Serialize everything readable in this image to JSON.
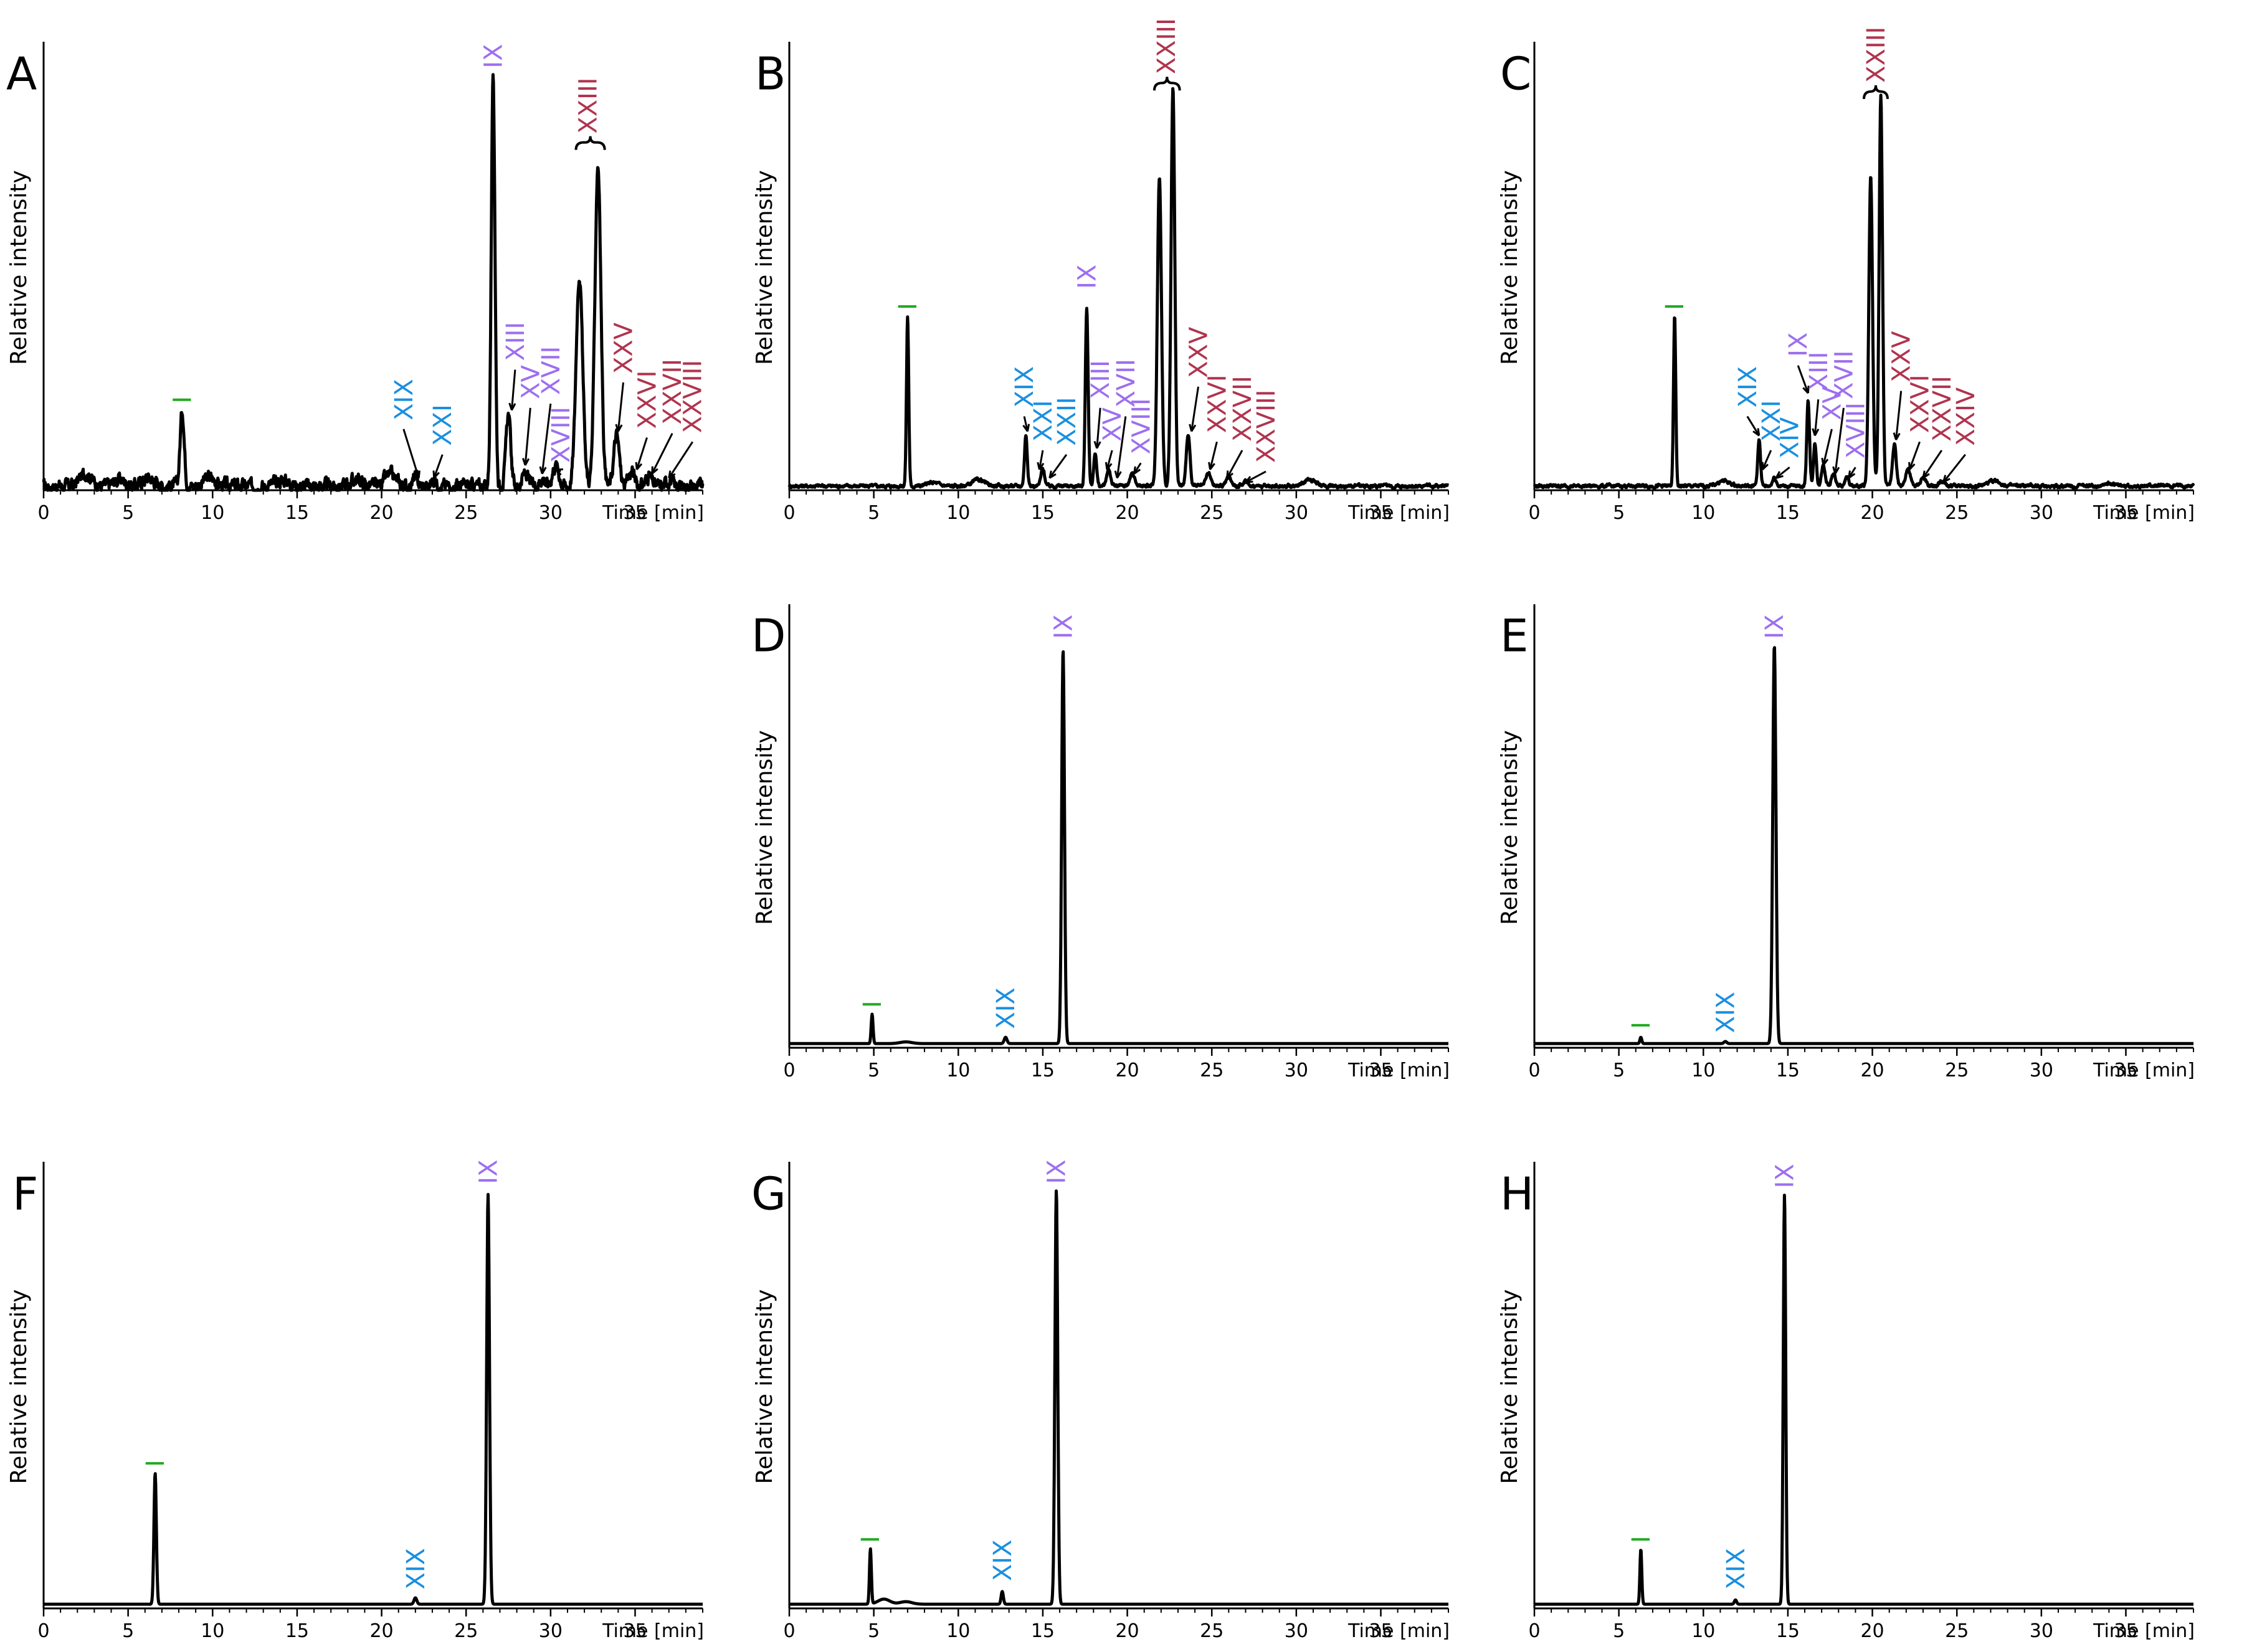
{
  "colors": {
    "green": "#22aa22",
    "blue": "#1a8fe0",
    "purple": "#9d6ef0",
    "red": "#b0344e",
    "line": "#000000"
  },
  "chart_data": [
    {
      "panel": "A",
      "type": "line",
      "ylabel": "Relative intensity",
      "xunit_label": "Time [min]",
      "xlim": [
        0,
        39
      ],
      "ylim": [
        0,
        1.05
      ],
      "xticks": [
        0,
        5,
        10,
        15,
        20,
        25,
        30,
        35
      ],
      "noise": 0.012,
      "baseline_bumps": [
        [
          2.5,
          0.03
        ],
        [
          4.5,
          0.015
        ],
        [
          6.2,
          0.02
        ],
        [
          9.8,
          0.02
        ],
        [
          14.2,
          0.015
        ],
        [
          18.5,
          0.015
        ],
        [
          20.5,
          0.025
        ]
      ],
      "peaks": [
        [
          8.2,
          0.18,
          0.22
        ],
        [
          22.0,
          0.02,
          0.25
        ],
        [
          23.1,
          0.015,
          0.25
        ],
        [
          26.6,
          0.96,
          0.2
        ],
        [
          27.5,
          0.17,
          0.25
        ],
        [
          28.5,
          0.03,
          0.3
        ],
        [
          29.5,
          0.02,
          0.3
        ],
        [
          30.3,
          0.05,
          0.35
        ],
        [
          31.7,
          0.5,
          0.35
        ],
        [
          32.8,
          0.76,
          0.32
        ],
        [
          33.9,
          0.12,
          0.3
        ],
        [
          34.8,
          0.035,
          0.3
        ],
        [
          35.8,
          0.025,
          0.3
        ],
        [
          37.0,
          0.015,
          0.3
        ]
      ],
      "labels": [
        {
          "text": "I",
          "class": "green",
          "x": 8.2,
          "y": 0.19
        },
        {
          "text": "XIX",
          "class": "blue",
          "x": 21.3,
          "y": 0.15,
          "ax": 22.2,
          "ay": 0.02
        },
        {
          "text": "XXI",
          "class": "blue",
          "x": 23.6,
          "y": 0.09,
          "ax": 23.1,
          "ay": 0.02
        },
        {
          "text": "IX",
          "class": "purple",
          "x": 26.6,
          "y": 0.98
        },
        {
          "text": "XIII",
          "class": "purple",
          "x": 27.9,
          "y": 0.29,
          "ax": 27.7,
          "ay": 0.18
        },
        {
          "text": "XV",
          "class": "purple",
          "x": 28.8,
          "y": 0.2,
          "ax": 28.5,
          "ay": 0.05
        },
        {
          "text": "XVII",
          "class": "purple",
          "x": 30.0,
          "y": 0.21,
          "ax": 29.5,
          "ay": 0.03
        },
        {
          "text": "XVIII",
          "class": "purple",
          "x": 30.6,
          "y": 0.05,
          "ax": 30.3,
          "ay": 0.04
        },
        {
          "text": "XXIII",
          "class": "red",
          "x": 32.2,
          "y": 0.82,
          "brace": [
            31.5,
            33.2
          ]
        },
        {
          "text": "XXV",
          "class": "red",
          "x": 34.3,
          "y": 0.26,
          "ax": 34.0,
          "ay": 0.13
        },
        {
          "text": "XXVI",
          "class": "red",
          "x": 35.7,
          "y": 0.13,
          "ax": 35.1,
          "ay": 0.04
        },
        {
          "text": "XXVII",
          "class": "red",
          "x": 37.2,
          "y": 0.14,
          "ax": 36.0,
          "ay": 0.03
        },
        {
          "text": "XXVIII",
          "class": "red",
          "x": 38.4,
          "y": 0.12,
          "ax": 37.0,
          "ay": 0.02
        }
      ]
    },
    {
      "panel": "B",
      "type": "line",
      "ylabel": "Relative intensity",
      "xunit_label": "Time [min]",
      "xlim": [
        0,
        39
      ],
      "ylim": [
        0,
        1.05
      ],
      "xticks": [
        0,
        5,
        10,
        15,
        20,
        25,
        30,
        35
      ],
      "noise": 0.003,
      "baseline_bumps": [
        [
          8.5,
          0.008
        ],
        [
          11.2,
          0.015
        ],
        [
          30.8,
          0.015
        ]
      ],
      "peaks": [
        [
          7.0,
          0.4,
          0.12
        ],
        [
          14.0,
          0.12,
          0.15
        ],
        [
          15.0,
          0.04,
          0.2
        ],
        [
          17.6,
          0.42,
          0.15
        ],
        [
          18.1,
          0.08,
          0.15
        ],
        [
          18.9,
          0.04,
          0.2
        ],
        [
          20.3,
          0.03,
          0.25
        ],
        [
          21.9,
          0.73,
          0.22
        ],
        [
          22.7,
          0.94,
          0.2
        ],
        [
          23.6,
          0.12,
          0.2
        ],
        [
          24.8,
          0.03,
          0.25
        ],
        [
          26.0,
          0.02,
          0.3
        ],
        [
          27.0,
          0.01,
          0.3
        ]
      ],
      "labels": [
        {
          "text": "I",
          "class": "green",
          "x": 7.0,
          "y": 0.41
        },
        {
          "text": "XIX",
          "class": "blue",
          "x": 13.9,
          "y": 0.18,
          "ax": 14.1,
          "ay": 0.13
        },
        {
          "text": "XXI",
          "class": "blue",
          "x": 15.0,
          "y": 0.1,
          "ax": 14.8,
          "ay": 0.04
        },
        {
          "text": "XXII",
          "class": "blue",
          "x": 16.4,
          "y": 0.09,
          "ax": 15.4,
          "ay": 0.02
        },
        {
          "text": "IX",
          "class": "purple",
          "x": 17.6,
          "y": 0.46
        },
        {
          "text": "XIII",
          "class": "purple",
          "x": 18.4,
          "y": 0.2,
          "ax": 18.2,
          "ay": 0.09
        },
        {
          "text": "XV",
          "class": "purple",
          "x": 19.1,
          "y": 0.1,
          "ax": 18.8,
          "ay": 0.04
        },
        {
          "text": "XVII",
          "class": "purple",
          "x": 19.9,
          "y": 0.18,
          "ax": 19.4,
          "ay": 0.02
        },
        {
          "text": "XVIII",
          "class": "purple",
          "x": 20.8,
          "y": 0.07,
          "ax": 20.4,
          "ay": 0.03
        },
        {
          "text": "XXIII",
          "class": "red",
          "x": 22.3,
          "y": 0.96,
          "brace": [
            21.6,
            23.1
          ]
        },
        {
          "text": "XXV",
          "class": "red",
          "x": 24.2,
          "y": 0.25,
          "ax": 23.8,
          "ay": 0.13
        },
        {
          "text": "XXVI",
          "class": "red",
          "x": 25.3,
          "y": 0.12,
          "ax": 24.9,
          "ay": 0.04
        },
        {
          "text": "XXVII",
          "class": "red",
          "x": 26.8,
          "y": 0.1,
          "ax": 25.9,
          "ay": 0.02
        },
        {
          "text": "XXVIII",
          "class": "red",
          "x": 28.2,
          "y": 0.05,
          "ax": 27.0,
          "ay": 0.01
        }
      ]
    },
    {
      "panel": "C",
      "type": "line",
      "ylabel": "Relative intensity",
      "xunit_label": "Time [min]",
      "xlim": [
        0,
        39
      ],
      "ylim": [
        0,
        1.05
      ],
      "xticks": [
        0,
        5,
        10,
        15,
        20,
        25,
        30,
        35
      ],
      "noise": 0.003,
      "baseline_bumps": [
        [
          11.2,
          0.012
        ],
        [
          27.2,
          0.012
        ],
        [
          34.0,
          0.006
        ]
      ],
      "peaks": [
        [
          8.3,
          0.4,
          0.12
        ],
        [
          13.3,
          0.11,
          0.15
        ],
        [
          14.2,
          0.02,
          0.2
        ],
        [
          16.2,
          0.2,
          0.15
        ],
        [
          16.6,
          0.1,
          0.15
        ],
        [
          17.1,
          0.05,
          0.2
        ],
        [
          17.7,
          0.03,
          0.2
        ],
        [
          18.5,
          0.02,
          0.2
        ],
        [
          19.9,
          0.73,
          0.2
        ],
        [
          20.5,
          0.92,
          0.18
        ],
        [
          21.3,
          0.1,
          0.2
        ],
        [
          22.1,
          0.04,
          0.25
        ],
        [
          23.0,
          0.02,
          0.25
        ],
        [
          24.1,
          0.01,
          0.3
        ]
      ],
      "labels": [
        {
          "text": "I",
          "class": "green",
          "x": 8.3,
          "y": 0.41
        },
        {
          "text": "XIX",
          "class": "blue",
          "x": 12.6,
          "y": 0.18,
          "ax": 13.3,
          "ay": 0.12
        },
        {
          "text": "XXI",
          "class": "blue",
          "x": 14.0,
          "y": 0.1,
          "ax": 13.5,
          "ay": 0.04
        },
        {
          "text": "XIV",
          "class": "blue",
          "x": 15.1,
          "y": 0.06,
          "ax": 14.3,
          "ay": 0.02
        },
        {
          "text": "IX",
          "class": "purple",
          "x": 15.6,
          "y": 0.3,
          "ax": 16.2,
          "ay": 0.22
        },
        {
          "text": "XIII",
          "class": "purple",
          "x": 16.8,
          "y": 0.22,
          "ax": 16.6,
          "ay": 0.12
        },
        {
          "text": "XV",
          "class": "purple",
          "x": 17.6,
          "y": 0.15,
          "ax": 17.1,
          "ay": 0.05
        },
        {
          "text": "XVII",
          "class": "purple",
          "x": 18.3,
          "y": 0.2,
          "ax": 17.8,
          "ay": 0.03
        },
        {
          "text": "XVIII",
          "class": "purple",
          "x": 19.0,
          "y": 0.06,
          "ax": 18.6,
          "ay": 0.02
        },
        {
          "text": "XXIII",
          "class": "red",
          "x": 20.2,
          "y": 0.94,
          "brace": [
            19.5,
            20.9
          ]
        },
        {
          "text": "XXV",
          "class": "red",
          "x": 21.7,
          "y": 0.24,
          "ax": 21.4,
          "ay": 0.11
        },
        {
          "text": "XXVI",
          "class": "red",
          "x": 22.8,
          "y": 0.12,
          "ax": 22.2,
          "ay": 0.04
        },
        {
          "text": "XXVII",
          "class": "red",
          "x": 24.1,
          "y": 0.1,
          "ax": 23.0,
          "ay": 0.02
        },
        {
          "text": "XXIV",
          "class": "red",
          "x": 25.5,
          "y": 0.09,
          "ax": 24.2,
          "ay": 0.01
        }
      ]
    },
    {
      "panel": "D",
      "type": "line",
      "ylabel": "Relative intensity",
      "xunit_label": "Time [min]",
      "xlim": [
        0,
        39
      ],
      "ylim": [
        0,
        1.05
      ],
      "xticks": [
        0,
        5,
        10,
        15,
        20,
        25,
        30,
        35
      ],
      "noise": 0.0,
      "baseline_bumps": [
        [
          6.9,
          0.004
        ]
      ],
      "peaks": [
        [
          4.9,
          0.07,
          0.1
        ],
        [
          12.8,
          0.015,
          0.15
        ],
        [
          16.2,
          0.94,
          0.15
        ]
      ],
      "labels": [
        {
          "text": "I",
          "class": "green",
          "x": 4.9,
          "y": 0.08
        },
        {
          "text": "XIX",
          "class": "blue",
          "x": 12.8,
          "y": 0.03
        },
        {
          "text": "IX",
          "class": "purple",
          "x": 16.2,
          "y": 0.96
        }
      ]
    },
    {
      "panel": "E",
      "type": "line",
      "ylabel": "Relative intensity",
      "xunit_label": "Time [min]",
      "xlim": [
        0,
        39
      ],
      "ylim": [
        0,
        1.05
      ],
      "xticks": [
        0,
        5,
        10,
        15,
        20,
        25,
        30,
        35
      ],
      "noise": 0.0,
      "baseline_bumps": [],
      "peaks": [
        [
          6.3,
          0.015,
          0.1
        ],
        [
          11.3,
          0.005,
          0.15
        ],
        [
          14.2,
          0.95,
          0.17
        ]
      ],
      "labels": [
        {
          "text": "I",
          "class": "green",
          "x": 6.3,
          "y": 0.03
        },
        {
          "text": "XIX",
          "class": "blue",
          "x": 11.3,
          "y": 0.02
        },
        {
          "text": "IX",
          "class": "purple",
          "x": 14.2,
          "y": 0.96
        }
      ]
    },
    {
      "panel": "F",
      "type": "line",
      "ylabel": "Relative intensity",
      "xunit_label": "Time [min]",
      "xlim": [
        0,
        39
      ],
      "ylim": [
        0,
        1.05
      ],
      "xticks": [
        0,
        5,
        10,
        15,
        20,
        25,
        30,
        35
      ],
      "noise": 0.0,
      "baseline_bumps": [],
      "peaks": [
        [
          6.6,
          0.31,
          0.13
        ],
        [
          22.0,
          0.015,
          0.15
        ],
        [
          26.3,
          0.97,
          0.15
        ]
      ],
      "labels": [
        {
          "text": "I",
          "class": "green",
          "x": 6.6,
          "y": 0.32
        },
        {
          "text": "XIX",
          "class": "blue",
          "x": 22.0,
          "y": 0.03
        },
        {
          "text": "IX",
          "class": "purple",
          "x": 26.3,
          "y": 0.99
        }
      ]
    },
    {
      "panel": "G",
      "type": "line",
      "ylabel": "Relative intensity",
      "xunit_label": "Time [min]",
      "xlim": [
        0,
        39
      ],
      "ylim": [
        0,
        1.05
      ],
      "xticks": [
        0,
        5,
        10,
        15,
        20,
        25,
        30,
        35
      ],
      "noise": 0.0,
      "baseline_bumps": [
        [
          5.6,
          0.012
        ],
        [
          6.9,
          0.006
        ]
      ],
      "peaks": [
        [
          4.8,
          0.13,
          0.1
        ],
        [
          12.6,
          0.03,
          0.12
        ],
        [
          15.8,
          0.98,
          0.15
        ]
      ],
      "labels": [
        {
          "text": "I",
          "class": "green",
          "x": 4.8,
          "y": 0.14
        },
        {
          "text": "XIX",
          "class": "blue",
          "x": 12.6,
          "y": 0.05
        },
        {
          "text": "IX",
          "class": "purple",
          "x": 15.8,
          "y": 0.99
        }
      ]
    },
    {
      "panel": "H",
      "type": "line",
      "ylabel": "Relative intensity",
      "xunit_label": "Time [min]",
      "xlim": [
        0,
        39
      ],
      "ylim": [
        0,
        1.05
      ],
      "xticks": [
        0,
        5,
        10,
        15,
        20,
        25,
        30,
        35
      ],
      "noise": 0.0,
      "baseline_bumps": [],
      "peaks": [
        [
          6.3,
          0.13,
          0.1
        ],
        [
          11.9,
          0.01,
          0.12
        ],
        [
          14.8,
          0.97,
          0.13
        ]
      ],
      "labels": [
        {
          "text": "I",
          "class": "green",
          "x": 6.3,
          "y": 0.14
        },
        {
          "text": "XIX",
          "class": "blue",
          "x": 11.9,
          "y": 0.03
        },
        {
          "text": "IX",
          "class": "purple",
          "x": 14.8,
          "y": 0.98
        }
      ]
    }
  ]
}
